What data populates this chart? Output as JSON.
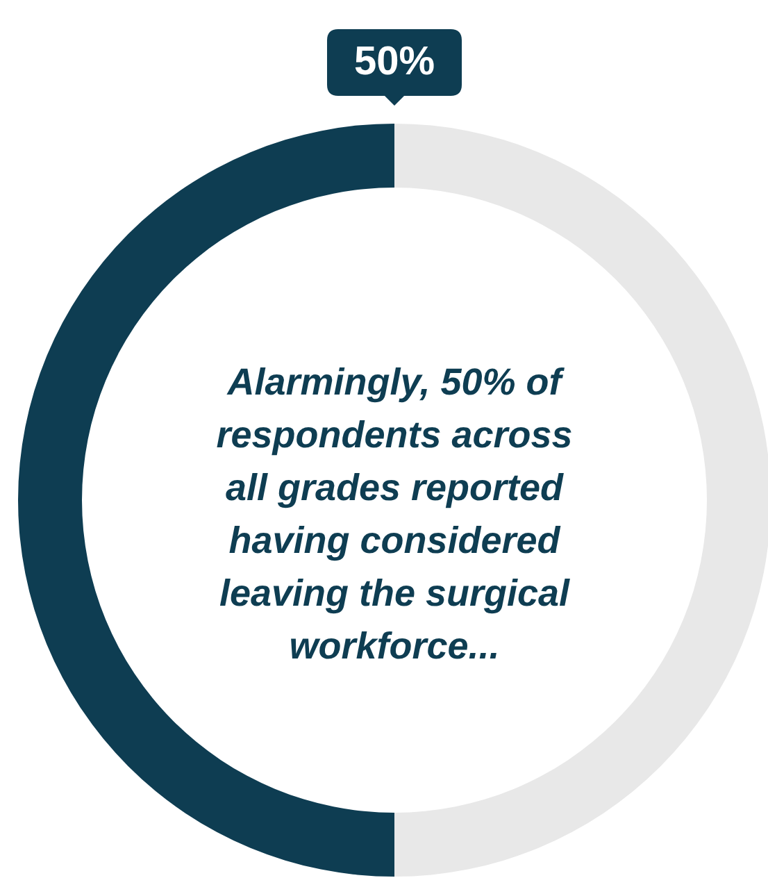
{
  "chart_data": {
    "type": "donut",
    "categories": [
      null,
      null
    ],
    "values": [
      50,
      50
    ],
    "colors": [
      "#0e3d52",
      "#e8e8e8"
    ],
    "value_labels": [
      "50%",
      null
    ],
    "annotations": [
      "Alarmingly, 50% of respondents across all grades reported having considered leaving the surgical workforce..."
    ]
  }
}
